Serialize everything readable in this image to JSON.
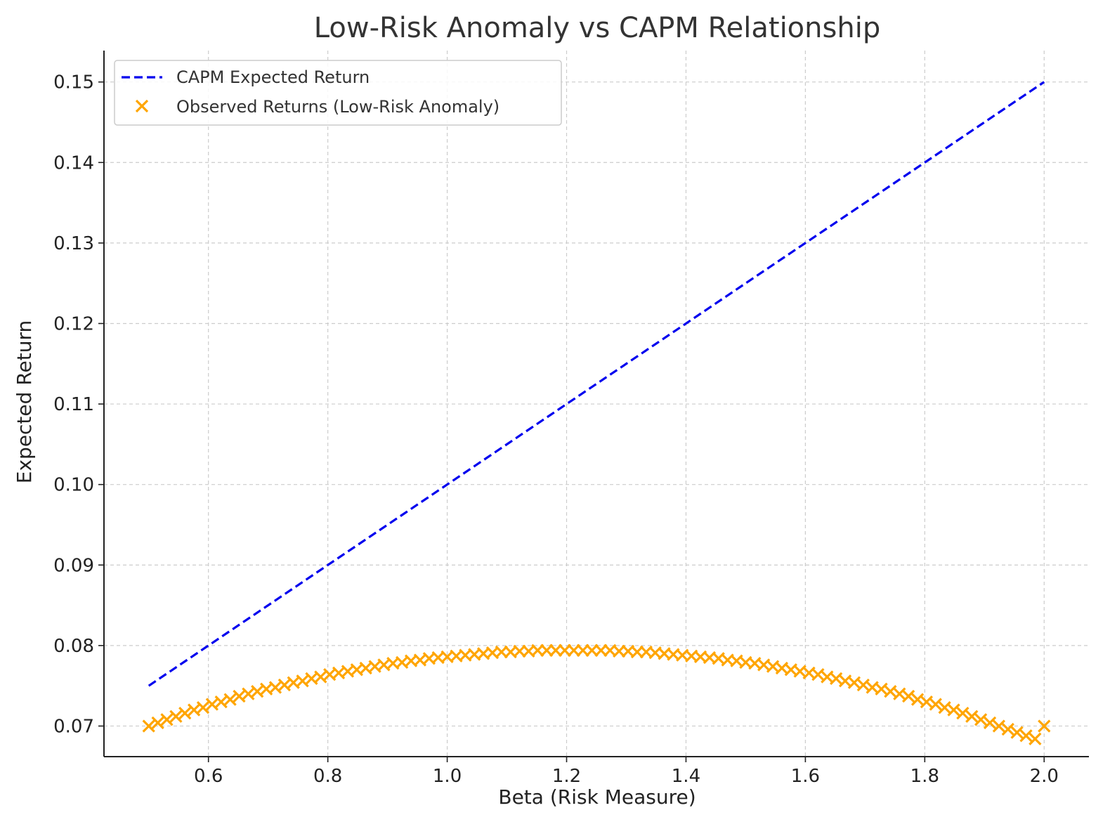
{
  "chart_data": {
    "type": "line",
    "title": "Low-Risk Anomaly vs CAPM Relationship",
    "xlabel": "Beta (Risk Measure)",
    "ylabel": "Expected Return",
    "xlim": [
      0.425,
      2.075
    ],
    "ylim": [
      0.0662,
      0.1539
    ],
    "xticks": [
      0.6,
      0.8,
      1.0,
      1.2,
      1.4,
      1.6,
      1.8,
      2.0
    ],
    "xtick_labels": [
      "0.6",
      "0.8",
      "1.0",
      "1.2",
      "1.4",
      "1.6",
      "1.8",
      "2.0"
    ],
    "yticks": [
      0.07,
      0.08,
      0.09,
      0.1,
      0.11,
      0.12,
      0.13,
      0.14,
      0.15
    ],
    "ytick_labels": [
      "0.07",
      "0.08",
      "0.09",
      "0.10",
      "0.11",
      "0.12",
      "0.13",
      "0.14",
      "0.15"
    ],
    "grid": true,
    "legend_position": "top-left",
    "series": [
      {
        "name": "CAPM Expected Return",
        "kind": "line",
        "style": "dashed",
        "color": "#0000ee",
        "x": [
          0.5,
          2.0
        ],
        "y": [
          0.075,
          0.15
        ]
      },
      {
        "name": "Observed Returns (Low-Risk Anomaly)",
        "kind": "scatter",
        "marker": "x",
        "color": "#ffa500",
        "x": [
          0.5,
          0.5152,
          0.5303,
          0.5455,
          0.5606,
          0.5758,
          0.5909,
          0.6061,
          0.6212,
          0.6364,
          0.6515,
          0.6667,
          0.6818,
          0.697,
          0.7121,
          0.7273,
          0.7424,
          0.7576,
          0.7727,
          0.7879,
          0.803,
          0.8182,
          0.8333,
          0.8485,
          0.8636,
          0.8788,
          0.8939,
          0.9091,
          0.9242,
          0.9394,
          0.9545,
          0.9697,
          0.9848,
          1.0,
          1.0152,
          1.0303,
          1.0455,
          1.0606,
          1.0758,
          1.0909,
          1.1061,
          1.1212,
          1.1364,
          1.1515,
          1.1667,
          1.1818,
          1.197,
          1.2121,
          1.2273,
          1.2424,
          1.2576,
          1.2727,
          1.2879,
          1.303,
          1.3182,
          1.3333,
          1.3485,
          1.3636,
          1.3788,
          1.3939,
          1.4091,
          1.4242,
          1.4394,
          1.4545,
          1.4697,
          1.4848,
          1.5,
          1.5152,
          1.5303,
          1.5455,
          1.5606,
          1.5758,
          1.5909,
          1.6061,
          1.6212,
          1.6364,
          1.6515,
          1.6667,
          1.6818,
          1.697,
          1.7121,
          1.7273,
          1.7424,
          1.7576,
          1.7727,
          1.7879,
          1.803,
          1.8182,
          1.8333,
          1.8485,
          1.8636,
          1.8788,
          1.8939,
          1.9091,
          1.9242,
          1.9394,
          1.9545,
          1.9697,
          1.9848,
          2.0
        ],
        "y": [
          0.07,
          0.0704,
          0.0708,
          0.0712,
          0.0716,
          0.072,
          0.0723,
          0.0727,
          0.073,
          0.0733,
          0.0737,
          0.074,
          0.0743,
          0.0746,
          0.0748,
          0.0751,
          0.0754,
          0.0756,
          0.0759,
          0.0761,
          0.0764,
          0.0766,
          0.0768,
          0.077,
          0.0772,
          0.0774,
          0.0776,
          0.0778,
          0.0779,
          0.0781,
          0.0782,
          0.0784,
          0.0785,
          0.0786,
          0.0787,
          0.0788,
          0.0789,
          0.079,
          0.0791,
          0.0792,
          0.0792,
          0.0793,
          0.0793,
          0.0794,
          0.0794,
          0.0794,
          0.0794,
          0.0794,
          0.0794,
          0.0794,
          0.0794,
          0.0794,
          0.0793,
          0.0793,
          0.0792,
          0.0792,
          0.0791,
          0.079,
          0.0789,
          0.0788,
          0.0787,
          0.0786,
          0.0785,
          0.0784,
          0.0782,
          0.0781,
          0.0779,
          0.0778,
          0.0776,
          0.0774,
          0.0772,
          0.077,
          0.0768,
          0.0766,
          0.0764,
          0.0761,
          0.0759,
          0.0756,
          0.0754,
          0.0751,
          0.0748,
          0.0746,
          0.0743,
          0.074,
          0.0737,
          0.0733,
          0.073,
          0.0727,
          0.0723,
          0.072,
          0.0716,
          0.0712,
          0.0708,
          0.0704,
          0.07,
          0.0696,
          0.0692,
          0.0688,
          0.0684,
          0.07
        ]
      }
    ]
  }
}
